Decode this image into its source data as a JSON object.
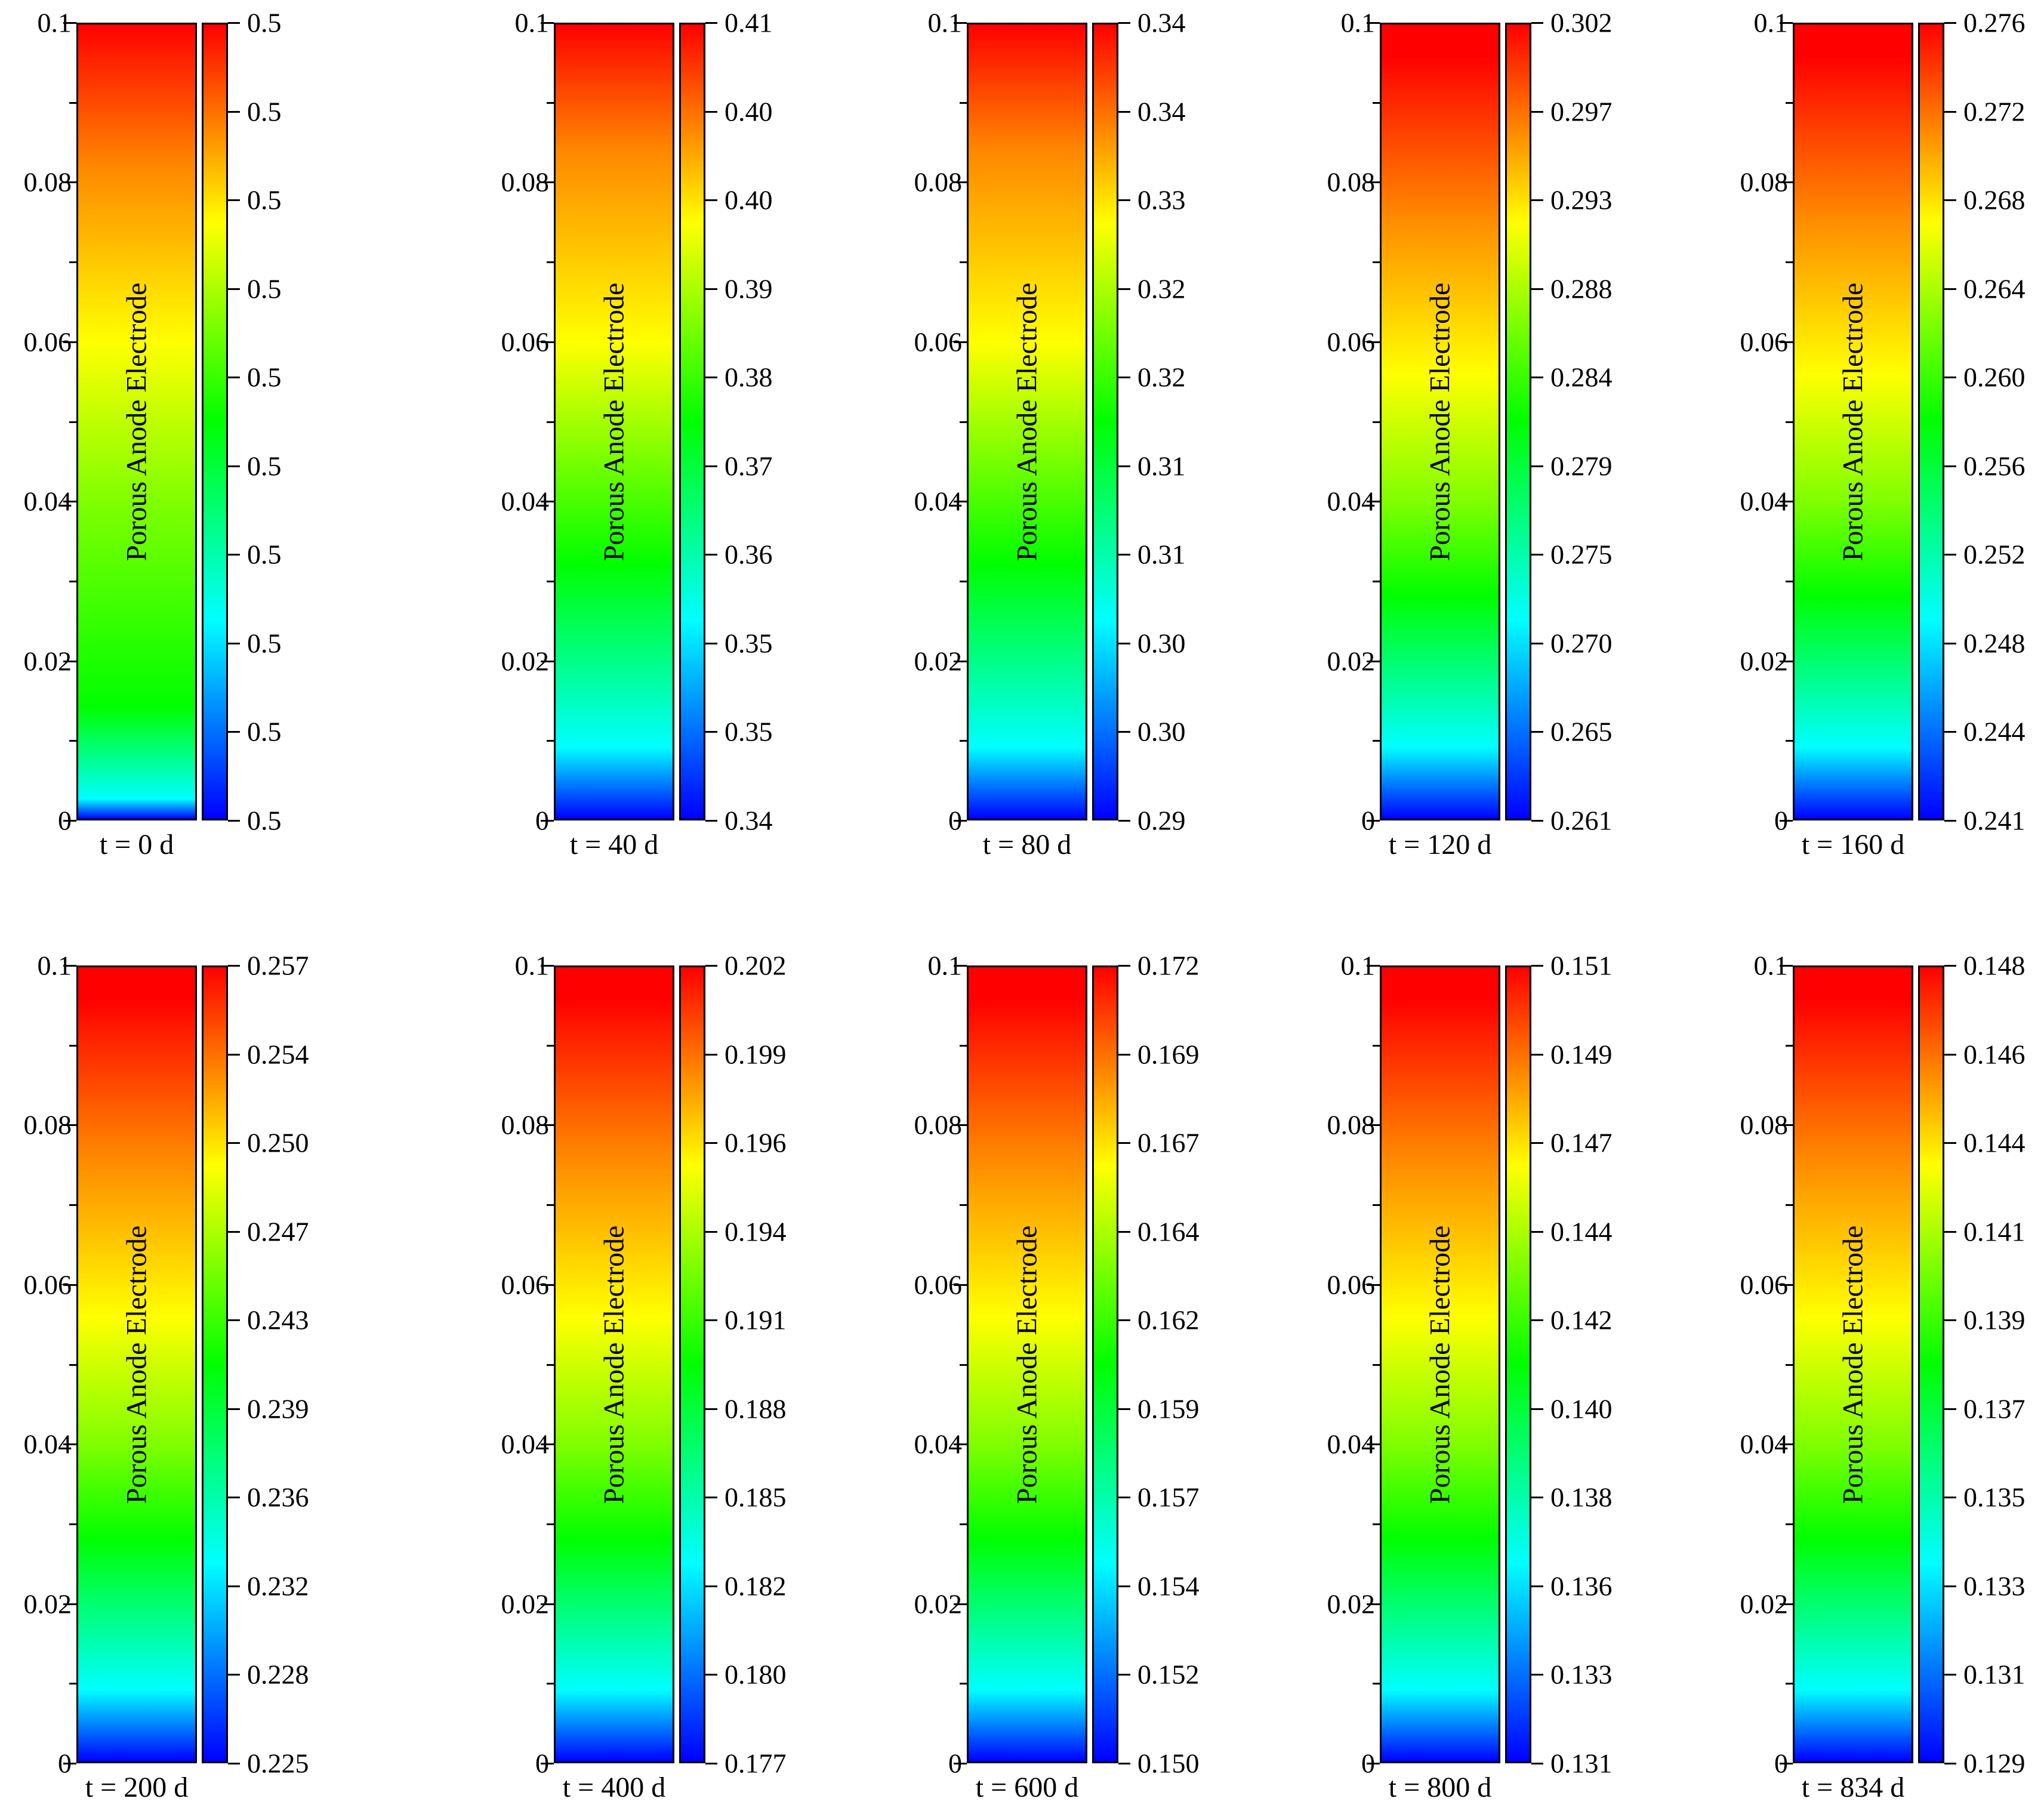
{
  "chart_data": {
    "type": "heatmap",
    "colormap": [
      "#0000ff",
      "#00ffff",
      "#00ff00",
      "#ffff00",
      "#ff0000"
    ],
    "y_axis": {
      "range": [
        0,
        0.1
      ],
      "ticks": [
        "0",
        "0.02",
        "0.04",
        "0.06",
        "0.08",
        "0.1"
      ]
    },
    "region_label": "Porous Anode Electrode",
    "panels": [
      {
        "time_label": "t = 0 d",
        "colorbar_ticks": [
          "0.5",
          "0.5",
          "0.5",
          "0.5",
          "0.5",
          "0.5",
          "0.5",
          "0.5",
          "0.5",
          "0.5"
        ],
        "shading": "bottom-heavy"
      },
      {
        "time_label": "t = 40 d",
        "colorbar_ticks": [
          "0.34",
          "0.35",
          "0.35",
          "0.36",
          "0.37",
          "0.38",
          "0.39",
          "0.40",
          "0.40",
          "0.41"
        ],
        "shading": "mid-yellow"
      },
      {
        "time_label": "t = 80 d",
        "colorbar_ticks": [
          "0.29",
          "0.30",
          "0.30",
          "0.31",
          "0.31",
          "0.32",
          "0.32",
          "0.33",
          "0.34",
          "0.34"
        ],
        "shading": "mid-yellow"
      },
      {
        "time_label": "t = 120 d",
        "colorbar_ticks": [
          "0.261",
          "0.265",
          "0.270",
          "0.275",
          "0.279",
          "0.284",
          "0.288",
          "0.293",
          "0.297",
          "0.302"
        ],
        "shading": "standard"
      },
      {
        "time_label": "t = 160 d",
        "colorbar_ticks": [
          "0.241",
          "0.244",
          "0.248",
          "0.252",
          "0.256",
          "0.260",
          "0.264",
          "0.268",
          "0.272",
          "0.276"
        ],
        "shading": "standard"
      },
      {
        "time_label": "t = 200 d",
        "colorbar_ticks": [
          "0.225",
          "0.228",
          "0.232",
          "0.236",
          "0.239",
          "0.243",
          "0.247",
          "0.250",
          "0.254",
          "0.257"
        ],
        "shading": "standard"
      },
      {
        "time_label": "t = 400 d",
        "colorbar_ticks": [
          "0.177",
          "0.180",
          "0.182",
          "0.185",
          "0.188",
          "0.191",
          "0.194",
          "0.196",
          "0.199",
          "0.202"
        ],
        "shading": "standard"
      },
      {
        "time_label": "t = 600 d",
        "colorbar_ticks": [
          "0.150",
          "0.152",
          "0.154",
          "0.157",
          "0.159",
          "0.162",
          "0.164",
          "0.167",
          "0.169",
          "0.172"
        ],
        "shading": "standard"
      },
      {
        "time_label": "t = 800 d",
        "colorbar_ticks": [
          "0.131",
          "0.133",
          "0.136",
          "0.138",
          "0.140",
          "0.142",
          "0.144",
          "0.147",
          "0.149",
          "0.151"
        ],
        "shading": "standard"
      },
      {
        "time_label": "t = 834 d",
        "colorbar_ticks": [
          "0.129",
          "0.131",
          "0.133",
          "0.135",
          "0.137",
          "0.139",
          "0.141",
          "0.144",
          "0.146",
          "0.148"
        ],
        "shading": "standard"
      }
    ]
  }
}
